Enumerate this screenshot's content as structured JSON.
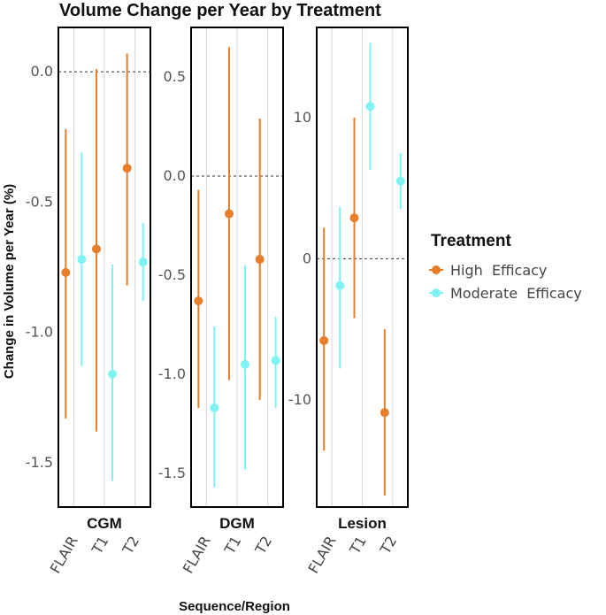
{
  "chart_data": {
    "type": "scatter",
    "subtype": "pointrange",
    "title": "Volume Change per Year by Treatment",
    "xlabel": "Sequence/Region",
    "ylabel": "Change in Volume per Year (%)",
    "categories": [
      "FLAIR",
      "T1",
      "T2"
    ],
    "reference_line": 0,
    "legend": {
      "title": "Treatment",
      "position": "right",
      "entries": [
        {
          "name": "High  Efficacy",
          "color": "#E87D2A"
        },
        {
          "name": "Moderate  Efficacy",
          "color": "#7FF3F3"
        }
      ]
    },
    "panels": [
      {
        "name": "CGM",
        "ylim": [
          -1.67,
          0.17
        ],
        "ticks": [
          0.0,
          -0.5,
          -1.0,
          -1.5
        ],
        "tick_labels": [
          "0.0",
          "-0.5",
          "-1.0",
          "-1.5"
        ],
        "series": [
          {
            "name": "High  Efficacy",
            "points": [
              {
                "x": "FLAIR",
                "y": -0.77,
                "low": -1.33,
                "high": -0.22
              },
              {
                "x": "T1",
                "y": -0.68,
                "low": -1.38,
                "high": 0.01
              },
              {
                "x": "T2",
                "y": -0.37,
                "low": -0.82,
                "high": 0.07
              }
            ]
          },
          {
            "name": "Moderate  Efficacy",
            "points": [
              {
                "x": "FLAIR",
                "y": -0.72,
                "low": -1.13,
                "high": -0.31
              },
              {
                "x": "T1",
                "y": -1.16,
                "low": -1.57,
                "high": -0.74
              },
              {
                "x": "T2",
                "y": -0.73,
                "low": -0.88,
                "high": -0.58
              }
            ]
          }
        ]
      },
      {
        "name": "DGM",
        "ylim": [
          -1.67,
          0.75
        ],
        "ticks": [
          0.5,
          0.0,
          -0.5,
          -1.0,
          -1.5
        ],
        "tick_labels": [
          "0.5",
          "0.0",
          "-0.5",
          "-1.0",
          "-1.5"
        ],
        "series": [
          {
            "name": "High  Efficacy",
            "points": [
              {
                "x": "FLAIR",
                "y": -0.63,
                "low": -1.17,
                "high": -0.07
              },
              {
                "x": "T1",
                "y": -0.19,
                "low": -1.03,
                "high": 0.65
              },
              {
                "x": "T2",
                "y": -0.42,
                "low": -1.13,
                "high": 0.29
              }
            ]
          },
          {
            "name": "Moderate  Efficacy",
            "points": [
              {
                "x": "FLAIR",
                "y": -1.17,
                "low": -1.57,
                "high": -0.76
              },
              {
                "x": "T1",
                "y": -0.95,
                "low": -1.48,
                "high": -0.45
              },
              {
                "x": "T2",
                "y": -0.93,
                "low": -1.17,
                "high": -0.71
              }
            ]
          }
        ]
      },
      {
        "name": "Lesion",
        "ylim": [
          -17.6,
          16.4
        ],
        "ticks": [
          10,
          0,
          -10
        ],
        "tick_labels": [
          "10",
          "0",
          "-10"
        ],
        "series": [
          {
            "name": "High  Efficacy",
            "points": [
              {
                "x": "FLAIR",
                "y": -5.8,
                "low": -13.6,
                "high": 2.2
              },
              {
                "x": "T1",
                "y": 2.9,
                "low": -4.2,
                "high": 10.0
              },
              {
                "x": "T2",
                "y": -10.9,
                "low": -16.8,
                "high": -5.0
              }
            ]
          },
          {
            "name": "Moderate  Efficacy",
            "points": [
              {
                "x": "FLAIR",
                "y": -1.9,
                "low": -7.8,
                "high": 3.7
              },
              {
                "x": "T1",
                "y": 10.8,
                "low": 6.3,
                "high": 15.3
              },
              {
                "x": "T2",
                "y": 5.5,
                "low": 3.5,
                "high": 7.5
              }
            ]
          }
        ]
      }
    ]
  }
}
